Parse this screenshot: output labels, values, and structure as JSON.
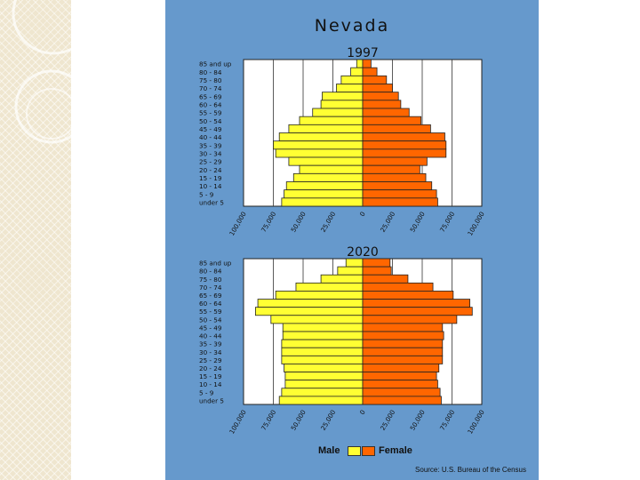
{
  "slide": {
    "title": "Nevada",
    "source": "Source: U.S. Bureau of the Census"
  },
  "legend": {
    "male": "Male",
    "female": "Female"
  },
  "colors": {
    "background": "#6699cc",
    "male": "#ffff33",
    "female": "#ff6600",
    "plot_bg": "#ffffff"
  },
  "chart_data": [
    {
      "type": "bar",
      "subtype": "population-pyramid",
      "title": "1997",
      "categories": [
        "85 and up",
        "80 - 84",
        "75 - 80",
        "70 - 74",
        "65 - 69",
        "60 - 64",
        "55 - 59",
        "50 - 54",
        "45 - 49",
        "40 - 44",
        "35 - 39",
        "30 - 34",
        "25 - 29",
        "20 - 24",
        "15 - 19",
        "10 - 14",
        "5 - 9",
        "under 5"
      ],
      "series": [
        {
          "name": "Male",
          "values": [
            5000,
            10000,
            18000,
            22000,
            34000,
            35000,
            42000,
            53000,
            62000,
            70000,
            75000,
            73000,
            62000,
            53000,
            58000,
            64000,
            66000,
            68000
          ]
        },
        {
          "name": "Female",
          "values": [
            7000,
            12000,
            20000,
            25000,
            30000,
            32000,
            39000,
            49000,
            57000,
            69000,
            70000,
            70000,
            54000,
            48000,
            53000,
            58000,
            62000,
            63000
          ]
        }
      ],
      "x_ticks": [
        "100,000",
        "75,000",
        "50,000",
        "25,000",
        "0",
        "25,000",
        "50,000",
        "75,000",
        "100,000"
      ],
      "xlim": [
        -100000,
        100000
      ]
    },
    {
      "type": "bar",
      "subtype": "population-pyramid",
      "title": "2020",
      "categories": [
        "85 and up",
        "80 - 84",
        "75 - 80",
        "70 - 74",
        "65 - 69",
        "60 - 64",
        "55 - 59",
        "50 - 54",
        "45 - 49",
        "40 - 44",
        "35 - 39",
        "30 - 34",
        "25 - 29",
        "20 - 24",
        "15 - 19",
        "10 - 14",
        "5 - 9",
        "under 5"
      ],
      "series": [
        {
          "name": "Male",
          "values": [
            14000,
            21000,
            35000,
            56000,
            73000,
            88000,
            90000,
            77000,
            67000,
            67000,
            68000,
            68000,
            68000,
            66000,
            65000,
            65000,
            68000,
            70000
          ]
        },
        {
          "name": "Female",
          "values": [
            23000,
            24000,
            38000,
            59000,
            76000,
            90000,
            92000,
            79000,
            67000,
            68000,
            67000,
            67000,
            67000,
            64000,
            62000,
            63000,
            65000,
            66000
          ]
        }
      ],
      "x_ticks": [
        "100,000",
        "75,000",
        "50,000",
        "25,000",
        "0",
        "25,000",
        "50,000",
        "75,000",
        "100,000"
      ],
      "xlim": [
        -100000,
        100000
      ]
    }
  ]
}
